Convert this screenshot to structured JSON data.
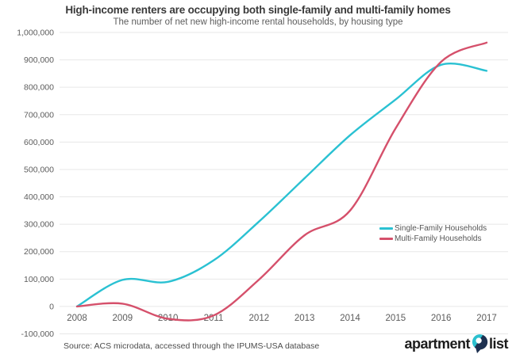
{
  "header": {
    "title": "High-income renters are occupying both single-family and multi-family homes",
    "subtitle": "The number of net new high-income rental households, by housing type"
  },
  "chart_data": {
    "type": "line",
    "title": "High-income renters are occupying both single-family and multi-family homes",
    "subtitle": "The number of net new high-income rental households, by housing type",
    "x": [
      2008,
      2009,
      2010,
      2011,
      2012,
      2013,
      2014,
      2015,
      2016,
      2017
    ],
    "series": [
      {
        "name": "Single-Family Households",
        "color": "#2ac1d2",
        "values": [
          0,
          97000,
          90000,
          168000,
          310000,
          468000,
          625000,
          755000,
          882000,
          860000
        ]
      },
      {
        "name": "Multi-Family Households",
        "color": "#d5506b",
        "values": [
          0,
          10000,
          -45000,
          -33000,
          98000,
          260000,
          350000,
          650000,
          893000,
          963000
        ]
      }
    ],
    "ylim": [
      -100000,
      1000000
    ],
    "ytick_step": 100000,
    "xlabel": "",
    "ylabel": "",
    "grid": "horizontal-only",
    "gridline_color": "#e7e7e7",
    "axis_label_color": "#5c5c5c",
    "legend_position": "center-right"
  },
  "footer": {
    "source": "Source: ACS microdata, accessed through the IPUMS-USA database",
    "logo": {
      "word1": "apartment",
      "word2": "list",
      "pin_teal": "#2bc0cf",
      "pin_navy": "#1d3050"
    }
  }
}
